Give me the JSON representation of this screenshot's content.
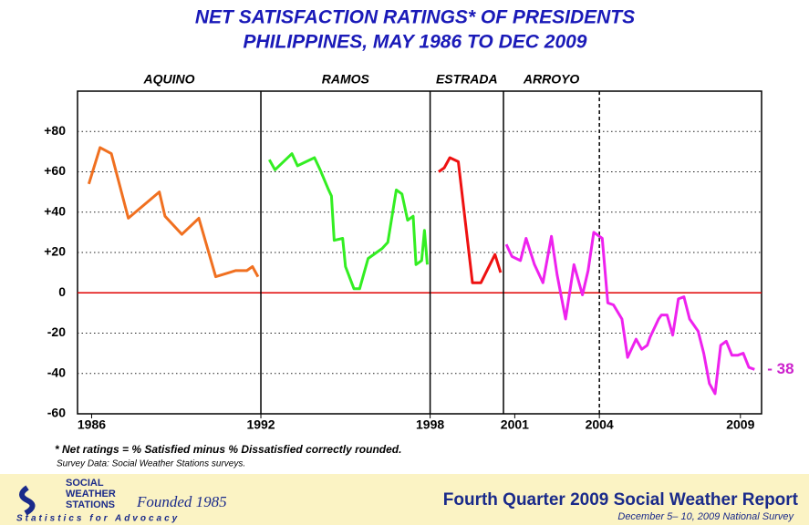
{
  "chart_data": {
    "type": "line",
    "title": "NET SATISFACTION RATINGS* OF PRESIDENTS",
    "subtitle": "PHILIPPINES, MAY 1986 TO DEC 2009",
    "xlim": [
      1985.5,
      2009.75
    ],
    "ylim": [
      -60,
      100
    ],
    "xticks": [
      1986,
      1992,
      1998,
      2001,
      2004,
      2009
    ],
    "yticks": [
      {
        "value": 80,
        "label": "+80"
      },
      {
        "value": 60,
        "label": "+60"
      },
      {
        "value": 40,
        "label": "+40"
      },
      {
        "value": 20,
        "label": "+20"
      },
      0,
      -20,
      -40,
      -60
    ],
    "grid": true,
    "zero_line_color": "#e00000",
    "dividers": [
      {
        "x": 1992,
        "dashed": false
      },
      {
        "x": 1998,
        "dashed": false
      },
      {
        "x": 2000.6,
        "dashed": false
      },
      {
        "x": 2004,
        "dashed": true
      }
    ],
    "series": [
      {
        "name": "AQUINO",
        "color": "#f07020",
        "x": [
          1985.9,
          1986.3,
          1986.7,
          1987.3,
          1988.4,
          1988.6,
          1989.2,
          1989.8,
          1990.4,
          1991.1,
          1991.5,
          1991.7,
          1991.9
        ],
        "values": [
          54,
          72,
          69,
          37,
          50,
          38,
          29,
          37,
          8,
          11,
          11,
          13,
          8
        ]
      },
      {
        "name": "RAMOS",
        "color": "#33ee22",
        "x": [
          1992.3,
          1992.5,
          1993.1,
          1993.3,
          1993.9,
          1994.1,
          1994.4,
          1994.5,
          1994.6,
          1994.9,
          1995.0,
          1995.3,
          1995.5,
          1995.8,
          1996.3,
          1996.5,
          1996.8,
          1997.0,
          1997.2,
          1997.4,
          1997.5,
          1997.7,
          1997.8,
          1997.9
        ],
        "values": [
          66,
          61,
          69,
          63,
          67,
          61,
          51,
          48,
          26,
          27,
          13,
          2,
          2,
          17,
          22,
          25,
          51,
          49,
          36,
          38,
          14,
          16,
          31,
          14
        ]
      },
      {
        "name": "ESTRADA",
        "color": "#ee1111",
        "x": [
          1998.3,
          1998.5,
          1998.7,
          1999.0,
          1999.5,
          1999.8,
          2000.3,
          2000.5
        ],
        "values": [
          60,
          62,
          67,
          65,
          5,
          5,
          19,
          10
        ]
      },
      {
        "name": "ARROYO",
        "color": "#ee22ee",
        "x": [
          2000.7,
          2000.9,
          2001.2,
          2001.4,
          2001.7,
          2002.0,
          2002.3,
          2002.5,
          2002.8,
          2003.1,
          2003.4,
          2003.6,
          2003.8,
          2004.1,
          2004.3,
          2004.5,
          2004.8,
          2005.0,
          2005.3,
          2005.5,
          2005.7,
          2005.8,
          2006.1,
          2006.2,
          2006.4,
          2006.6,
          2006.8,
          2007.0,
          2007.2,
          2007.5,
          2007.7,
          2007.9,
          2008.1,
          2008.3,
          2008.5,
          2008.7,
          2008.9,
          2009.1,
          2009.3,
          2009.5
        ],
        "values": [
          24,
          18,
          16,
          27,
          14,
          5,
          28,
          9,
          -13,
          14,
          -1,
          11,
          30,
          27,
          -5,
          -6,
          -13,
          -32,
          -23,
          -28,
          -26,
          -22,
          -13,
          -11,
          -11,
          -21,
          -3,
          -2,
          -13,
          -19,
          -30,
          -45,
          -50,
          -26,
          -24,
          -31,
          -31,
          -30,
          -37,
          -38
        ],
        "value_labels": [
          null,
          null,
          null,
          null,
          null,
          null,
          null,
          null,
          null,
          null,
          null,
          null,
          null,
          null,
          null,
          null,
          null,
          null,
          null,
          null,
          null,
          null,
          null,
          null,
          null,
          null,
          null,
          null,
          null,
          null,
          null,
          null,
          null,
          null,
          null,
          null,
          null,
          null,
          null,
          "- 38"
        ]
      }
    ],
    "footnote": "* Net ratings = % Satisfied minus % Dissatisfied correctly rounded.",
    "source": "Survey Data: Social Weather Stations surveys."
  },
  "footer": {
    "logo": [
      "SOCIAL",
      "WEATHER",
      "STATIONS"
    ],
    "founded": "Founded 1985",
    "tagline": "Statistics for Advocacy",
    "report": "Fourth Quarter 2009  Social Weather Report",
    "survey": "December 5– 10, 2009  National Survey"
  }
}
